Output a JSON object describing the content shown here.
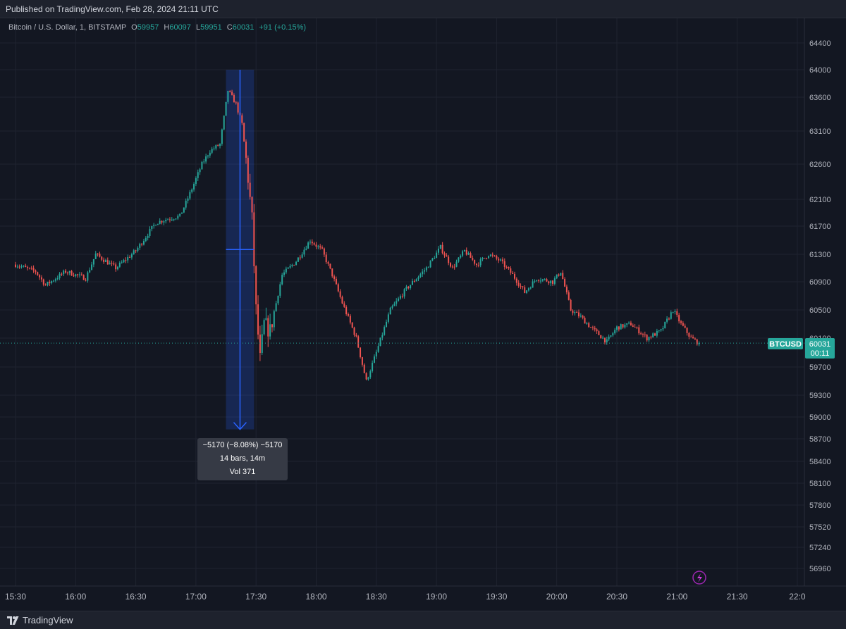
{
  "header": {
    "published": "Published on TradingView.com, Feb 28, 2024 21:11 UTC"
  },
  "legend": {
    "symbol": "Bitcoin / U.S. Dollar, 1, BITSTAMP",
    "o_label": "O",
    "o": "59957",
    "h_label": "H",
    "h": "60097",
    "l_label": "L",
    "l": "59951",
    "c_label": "C",
    "c": "60031",
    "change": "+91 (+0.15%)"
  },
  "price_badge": {
    "symbol": "BTCUSD",
    "price": "60031",
    "countdown": "00:11"
  },
  "measure": {
    "line1": "−5170 (−8.08%) −5170",
    "line2": "14 bars, 14m",
    "line3": "Vol 371"
  },
  "footer": {
    "brand": "TradingView"
  },
  "colors": {
    "up": "#26a69a",
    "down": "#ef5350",
    "background": "#131722",
    "measure": "#2962ff"
  },
  "chart_data": {
    "type": "candlestick",
    "symbol": "BTCUSD",
    "interval": "1",
    "x_ticks": [
      "15:30",
      "16:00",
      "16:30",
      "17:00",
      "17:30",
      "18:00",
      "18:30",
      "19:00",
      "19:30",
      "20:00",
      "20:30",
      "21:00",
      "21:30",
      "22:0"
    ],
    "y_ticks": [
      64400,
      64000,
      63600,
      63100,
      62600,
      62100,
      61700,
      61300,
      60900,
      60500,
      60100,
      59700,
      59300,
      59000,
      58700,
      58400,
      58100,
      57800,
      57520,
      57240,
      56960
    ],
    "ylim": [
      56800,
      64600
    ],
    "last_price": 60031,
    "series_path": [
      {
        "t": "15:30",
        "p": 61150
      },
      {
        "t": "15:40",
        "p": 61050
      },
      {
        "t": "15:45",
        "p": 60850
      },
      {
        "t": "15:55",
        "p": 61050
      },
      {
        "t": "16:05",
        "p": 60950
      },
      {
        "t": "16:10",
        "p": 61300
      },
      {
        "t": "16:20",
        "p": 61100
      },
      {
        "t": "16:30",
        "p": 61350
      },
      {
        "t": "16:40",
        "p": 61750
      },
      {
        "t": "16:45",
        "p": 61800
      },
      {
        "t": "16:52",
        "p": 61850
      },
      {
        "t": "16:58",
        "p": 62250
      },
      {
        "t": "17:03",
        "p": 62600
      },
      {
        "t": "17:07",
        "p": 62800
      },
      {
        "t": "17:12",
        "p": 62900
      },
      {
        "t": "17:16",
        "p": 63700
      },
      {
        "t": "17:20",
        "p": 63500
      },
      {
        "t": "17:23",
        "p": 63200
      },
      {
        "t": "17:26",
        "p": 62400
      },
      {
        "t": "17:28",
        "p": 61800
      },
      {
        "t": "17:30",
        "p": 60500
      },
      {
        "t": "17:32",
        "p": 59800
      },
      {
        "t": "17:34",
        "p": 60300
      },
      {
        "t": "17:37",
        "p": 60200
      },
      {
        "t": "17:43",
        "p": 61000
      },
      {
        "t": "17:50",
        "p": 61200
      },
      {
        "t": "17:57",
        "p": 61500
      },
      {
        "t": "18:03",
        "p": 61350
      },
      {
        "t": "18:08",
        "p": 61000
      },
      {
        "t": "18:13",
        "p": 60600
      },
      {
        "t": "18:20",
        "p": 60100
      },
      {
        "t": "18:25",
        "p": 59500
      },
      {
        "t": "18:30",
        "p": 59900
      },
      {
        "t": "18:37",
        "p": 60500
      },
      {
        "t": "18:45",
        "p": 60800
      },
      {
        "t": "18:55",
        "p": 61100
      },
      {
        "t": "19:02",
        "p": 61400
      },
      {
        "t": "19:08",
        "p": 61100
      },
      {
        "t": "19:14",
        "p": 61350
      },
      {
        "t": "19:20",
        "p": 61150
      },
      {
        "t": "19:26",
        "p": 61300
      },
      {
        "t": "19:32",
        "p": 61200
      },
      {
        "t": "19:38",
        "p": 61000
      },
      {
        "t": "19:44",
        "p": 60750
      },
      {
        "t": "19:50",
        "p": 60950
      },
      {
        "t": "19:58",
        "p": 60900
      },
      {
        "t": "20:02",
        "p": 61050
      },
      {
        "t": "20:07",
        "p": 60500
      },
      {
        "t": "20:12",
        "p": 60400
      },
      {
        "t": "20:17",
        "p": 60250
      },
      {
        "t": "20:25",
        "p": 60050
      },
      {
        "t": "20:30",
        "p": 60250
      },
      {
        "t": "20:37",
        "p": 60300
      },
      {
        "t": "20:45",
        "p": 60100
      },
      {
        "t": "20:52",
        "p": 60200
      },
      {
        "t": "20:58",
        "p": 60500
      },
      {
        "t": "21:02",
        "p": 60300
      },
      {
        "t": "21:07",
        "p": 60100
      },
      {
        "t": "21:11",
        "p": 60031
      }
    ],
    "measurement": {
      "start_price": 64000,
      "end_price": 58830,
      "start_time": "17:15",
      "end_time": "17:29",
      "change": -5170,
      "change_pct": -8.08,
      "bars": 14,
      "minutes": 14,
      "volume": 371
    }
  }
}
